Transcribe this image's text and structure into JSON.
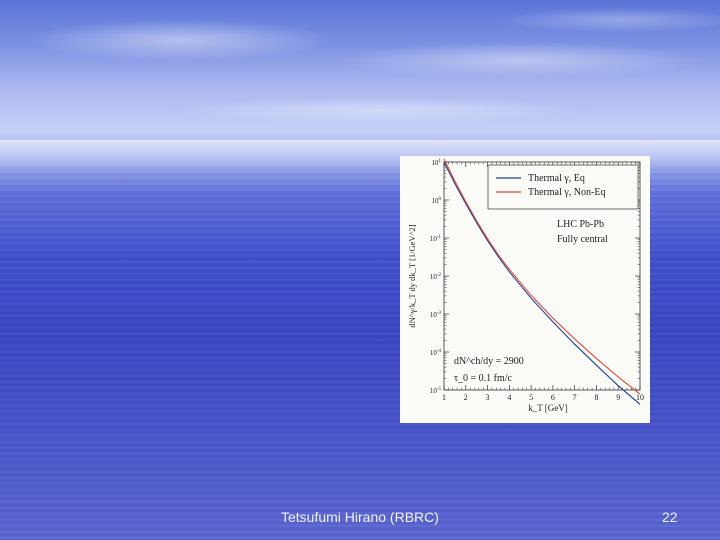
{
  "footer": {
    "author": "Tetsufumi Hirano (RBRC)",
    "page_number": "22"
  },
  "chart_data": {
    "type": "line",
    "xlabel": "k_T [GeV]",
    "ylabel": "dN^γ/k_T dy dk_T [1/GeV^2]",
    "xlim": [
      1,
      10
    ],
    "ylim": [
      1e-05,
      10
    ],
    "yscale": "log",
    "x_ticks": [
      "1",
      "2",
      "3",
      "4",
      "5",
      "6",
      "7",
      "8",
      "9",
      "10"
    ],
    "y_ticks": [
      "10^1",
      "10^0",
      "10^-1",
      "10^-2",
      "10^-3",
      "10^-4",
      "10^-5"
    ],
    "legend_position": "top-right",
    "annotations": {
      "system": "LHC Pb-Pb",
      "centrality": "Fully central",
      "multiplicity": "dN^ch/dy = 2900",
      "tau": "τ_0 = 0.1 fm/c"
    },
    "x": [
      1,
      1.5,
      2,
      2.5,
      3,
      3.5,
      4,
      5,
      6,
      7,
      8,
      9,
      10
    ],
    "series": [
      {
        "name": "Thermal γ, Eq",
        "color": "#1f3f8f",
        "values": [
          10,
          2.7,
          0.8,
          0.25,
          0.085,
          0.032,
          0.013,
          0.0026,
          0.00062,
          0.00016,
          4.5e-05,
          1.3e-05,
          4.2e-06
        ]
      },
      {
        "name": "Thermal γ, Non-Eq",
        "color": "#d64a3a",
        "values": [
          12,
          3.1,
          0.9,
          0.28,
          0.095,
          0.036,
          0.015,
          0.0031,
          0.00078,
          0.00022,
          6.8e-05,
          2.2e-05,
          7.8e-06
        ]
      }
    ]
  }
}
